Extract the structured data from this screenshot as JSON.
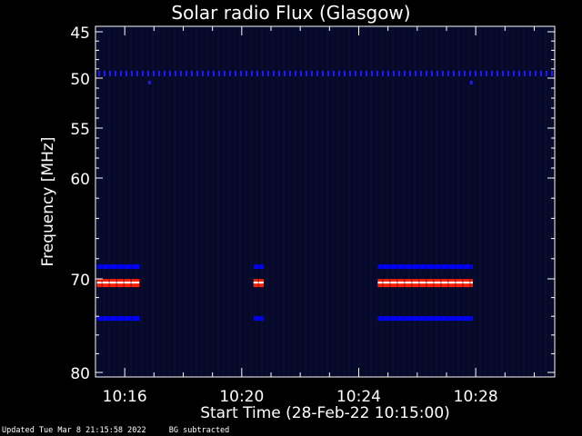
{
  "chart_data": {
    "type": "heatmap",
    "title": "Solar radio Flux (Glasgow)",
    "xlabel": "Start Time (28-Feb-22 10:15:00)",
    "ylabel": "Frequency [MHz]",
    "x_range_minutes": [
      0,
      15.7
    ],
    "x_ticks": [
      {
        "label": "10:16",
        "minute": 1
      },
      {
        "label": "10:20",
        "minute": 5
      },
      {
        "label": "10:24",
        "minute": 9
      },
      {
        "label": "10:28",
        "minute": 13
      }
    ],
    "y_ticks": [
      {
        "label": "45",
        "value": 45
      },
      {
        "label": "50",
        "value": 50
      },
      {
        "label": "55",
        "value": 55
      },
      {
        "label": "60",
        "value": 60
      },
      {
        "label": "70",
        "value": 70
      },
      {
        "label": "80",
        "value": 80
      }
    ],
    "background_color": "#06092a",
    "bursts": [
      {
        "start_minute": 0.05,
        "end_minute": 1.5,
        "frequency": 70.4,
        "colors": [
          "#0000ff",
          "#ff2000",
          "#ffffff"
        ]
      },
      {
        "start_minute": 5.4,
        "end_minute": 5.75,
        "frequency": 70.4,
        "colors": [
          "#0000ff",
          "#ff2000",
          "#ffffff"
        ]
      },
      {
        "start_minute": 9.65,
        "end_minute": 12.9,
        "frequency": 70.4,
        "colors": [
          "#0000ff",
          "#ff2000",
          "#ffffff"
        ]
      }
    ],
    "persistent_line_frequency": 49.5
  },
  "footer": {
    "updated": "Updated Tue Mar  8 21:15:58 2022",
    "note": "BG subtracted"
  }
}
